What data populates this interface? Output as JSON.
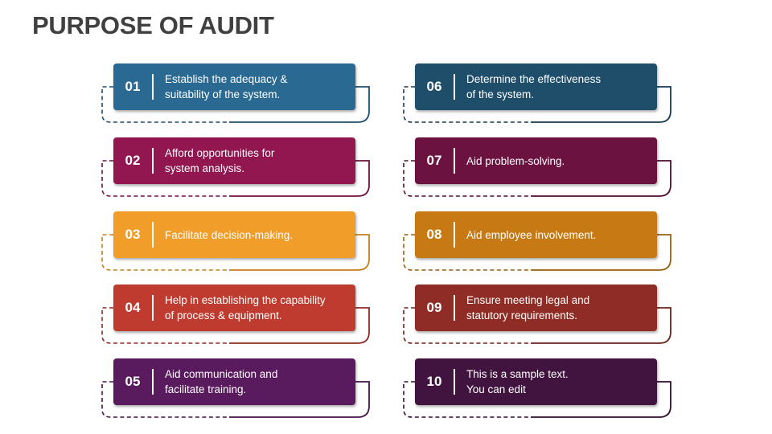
{
  "title": "PURPOSE OF AUDIT",
  "items": [
    {
      "number": "01",
      "text": "Establish the adequacy &\nsuitability of the system.",
      "color": "#2A6A92",
      "line_color": "#1F4F6E",
      "column": "left",
      "row": 0
    },
    {
      "number": "02",
      "text": "Afford opportunities for\nsystem analysis.",
      "color": "#921650",
      "line_color": "#6E103C",
      "column": "left",
      "row": 1
    },
    {
      "number": "03",
      "text": "Facilitate decision-making.",
      "color": "#F19D2A",
      "line_color": "#C57F1C",
      "column": "left",
      "row": 2
    },
    {
      "number": "04",
      "text": "Help in establishing the capability\nof process & equipment.",
      "color": "#BF3A2F",
      "line_color": "#8F2A22",
      "column": "left",
      "row": 3
    },
    {
      "number": "05",
      "text": "Aid communication and\nfacilitate training.",
      "color": "#5A1A5E",
      "line_color": "#451447",
      "column": "left",
      "row": 4
    },
    {
      "number": "06",
      "text": "Determine the effectiveness\nof the system.",
      "color": "#1F4E6B",
      "line_color": "#163A50",
      "column": "right",
      "row": 0
    },
    {
      "number": "07",
      "text": "Aid problem-solving.",
      "color": "#6C1240",
      "line_color": "#4E0D2E",
      "column": "right",
      "row": 1
    },
    {
      "number": "08",
      "text": "Aid employee involvement.",
      "color": "#C77A14",
      "line_color": "#98600F",
      "column": "right",
      "row": 2
    },
    {
      "number": "09",
      "text": "Ensure meeting legal and\nstatutory requirements.",
      "color": "#8F2C25",
      "line_color": "#6A201B",
      "column": "right",
      "row": 3
    },
    {
      "number": "10",
      "text": "This is a sample text.\nYou can edit",
      "color": "#41143F",
      "line_color": "#300E2E",
      "column": "right",
      "row": 4
    }
  ]
}
